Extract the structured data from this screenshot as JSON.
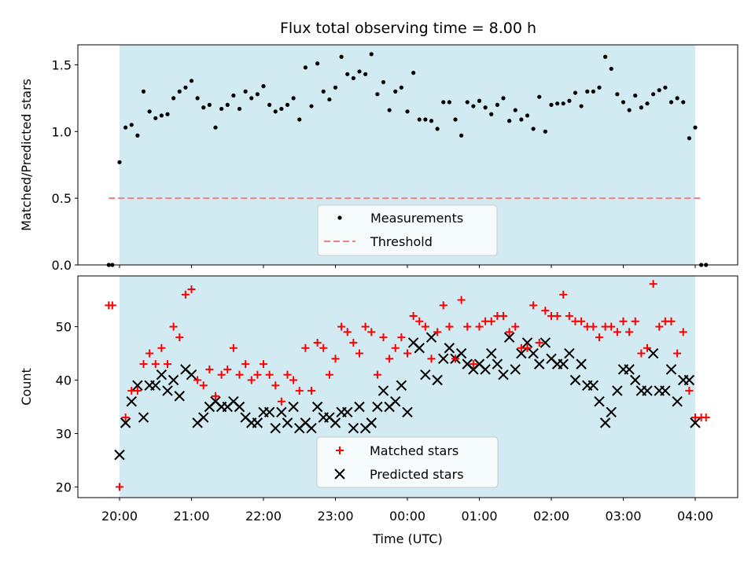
{
  "chart_data": [
    {
      "type": "scatter",
      "title": "Flux total observing time = 8.00 h",
      "ylabel": "Matched/Predicted stars",
      "xlabel": "",
      "ylim": [
        0,
        1.65
      ],
      "yticks": [
        "0.0",
        "0.5",
        "1.0",
        "1.5"
      ],
      "shaded_span": [
        "20:00",
        "04:00"
      ],
      "shade_color": "#add8e6",
      "legend_position": "lower center",
      "threshold": {
        "name": "Threshold",
        "value": 0.5,
        "color": "#f08080"
      },
      "series": [
        {
          "name": "Measurements",
          "color": "#000000",
          "x": [
            "19:51",
            "19:54",
            "20:00",
            "20:05",
            "20:10",
            "20:15",
            "20:20",
            "20:25",
            "20:30",
            "20:35",
            "20:40",
            "20:45",
            "20:50",
            "20:55",
            "21:00",
            "21:05",
            "21:10",
            "21:15",
            "21:20",
            "21:25",
            "21:30",
            "21:35",
            "21:40",
            "21:45",
            "21:50",
            "21:55",
            "22:00",
            "22:05",
            "22:10",
            "22:15",
            "22:20",
            "22:25",
            "22:30",
            "22:35",
            "22:40",
            "22:45",
            "22:50",
            "22:55",
            "23:00",
            "23:05",
            "23:10",
            "23:15",
            "23:20",
            "23:25",
            "23:30",
            "23:35",
            "23:40",
            "23:45",
            "23:50",
            "23:55",
            "00:00",
            "00:05",
            "00:10",
            "00:15",
            "00:20",
            "00:25",
            "00:30",
            "00:35",
            "00:40",
            "00:45",
            "00:50",
            "00:55",
            "01:00",
            "01:05",
            "01:10",
            "01:15",
            "01:20",
            "01:25",
            "01:30",
            "01:35",
            "01:40",
            "01:45",
            "01:50",
            "01:55",
            "02:00",
            "02:05",
            "02:10",
            "02:15",
            "02:20",
            "02:25",
            "02:30",
            "02:35",
            "02:40",
            "02:45",
            "02:50",
            "02:55",
            "03:00",
            "03:05",
            "03:10",
            "03:15",
            "03:20",
            "03:25",
            "03:30",
            "03:35",
            "03:40",
            "03:45",
            "03:50",
            "03:55",
            "04:00",
            "04:05",
            "04:09"
          ],
          "y": [
            0.0,
            0.0,
            0.77,
            1.03,
            1.05,
            0.97,
            1.3,
            1.15,
            1.1,
            1.12,
            1.13,
            1.25,
            1.3,
            1.33,
            1.38,
            1.25,
            1.18,
            1.2,
            1.03,
            1.17,
            1.2,
            1.27,
            1.17,
            1.3,
            1.25,
            1.28,
            1.34,
            1.2,
            1.15,
            1.17,
            1.2,
            1.25,
            1.09,
            1.48,
            1.19,
            1.51,
            1.3,
            1.24,
            1.33,
            1.56,
            1.43,
            1.4,
            1.45,
            1.43,
            1.58,
            1.28,
            1.37,
            1.16,
            1.3,
            1.33,
            1.15,
            1.44,
            1.09,
            1.09,
            1.08,
            1.02,
            1.22,
            1.22,
            1.09,
            0.97,
            1.22,
            1.19,
            1.23,
            1.18,
            1.13,
            1.2,
            1.25,
            1.08,
            1.16,
            1.09,
            1.12,
            1.02,
            1.26,
            1.0,
            1.2,
            1.21,
            1.21,
            1.23,
            1.29,
            1.19,
            1.3,
            1.3,
            1.33,
            1.56,
            1.47,
            1.28,
            1.22,
            1.16,
            1.27,
            1.18,
            1.21,
            1.28,
            1.31,
            1.33,
            1.22,
            1.25,
            1.22,
            0.95,
            1.03,
            0.0,
            0.0
          ]
        }
      ]
    },
    {
      "type": "scatter",
      "xlabel": "Time (UTC)",
      "ylabel": "Count",
      "ylim": [
        18,
        59.5
      ],
      "yticks": [
        "20",
        "30",
        "40",
        "50"
      ],
      "xticks": [
        "20:00",
        "21:00",
        "22:00",
        "23:00",
        "00:00",
        "01:00",
        "02:00",
        "03:00",
        "04:00"
      ],
      "shaded_span": [
        "20:00",
        "04:00"
      ],
      "shade_color": "#add8e6",
      "legend_position": "lower center",
      "series": [
        {
          "name": "Matched stars",
          "marker": "+",
          "color": "#ff0000",
          "x": [
            "19:51",
            "19:54",
            "20:00",
            "20:05",
            "20:10",
            "20:15",
            "20:20",
            "20:25",
            "20:30",
            "20:35",
            "20:40",
            "20:45",
            "20:50",
            "20:55",
            "21:00",
            "21:05",
            "21:10",
            "21:15",
            "21:20",
            "21:25",
            "21:30",
            "21:35",
            "21:40",
            "21:45",
            "21:50",
            "21:55",
            "22:00",
            "22:05",
            "22:10",
            "22:15",
            "22:20",
            "22:25",
            "22:30",
            "22:35",
            "22:40",
            "22:45",
            "22:50",
            "22:55",
            "23:00",
            "23:05",
            "23:10",
            "23:15",
            "23:20",
            "23:25",
            "23:30",
            "23:35",
            "23:40",
            "23:45",
            "23:50",
            "23:55",
            "00:00",
            "00:05",
            "00:10",
            "00:15",
            "00:20",
            "00:25",
            "00:30",
            "00:35",
            "00:40",
            "00:45",
            "00:50",
            "00:55",
            "01:00",
            "01:05",
            "01:10",
            "01:15",
            "01:20",
            "01:25",
            "01:30",
            "01:35",
            "01:40",
            "01:45",
            "01:50",
            "01:55",
            "02:00",
            "02:05",
            "02:10",
            "02:15",
            "02:20",
            "02:25",
            "02:30",
            "02:35",
            "02:40",
            "02:45",
            "02:50",
            "02:55",
            "03:00",
            "03:05",
            "03:10",
            "03:15",
            "03:20",
            "03:25",
            "03:30",
            "03:35",
            "03:40",
            "03:45",
            "03:50",
            "03:55",
            "04:00",
            "04:05",
            "04:09"
          ],
          "y": [
            54,
            54,
            20,
            33,
            38,
            38,
            43,
            45,
            43,
            46,
            43,
            50,
            48,
            56,
            57,
            40,
            39,
            42,
            37,
            41,
            42,
            46,
            41,
            43,
            40,
            41,
            43,
            41,
            39,
            36,
            41,
            40,
            38,
            46,
            38,
            47,
            46,
            41,
            44,
            50,
            49,
            47,
            45,
            50,
            49,
            41,
            48,
            44,
            46,
            48,
            45,
            52,
            51,
            50,
            44,
            49,
            54,
            50,
            44,
            55,
            50,
            43,
            50,
            51,
            51,
            52,
            52,
            49,
            50,
            46,
            46,
            54,
            47,
            53,
            52,
            52,
            56,
            52,
            51,
            51,
            50,
            50,
            48,
            50,
            50,
            49,
            51,
            49,
            51,
            45,
            46,
            58,
            50,
            51,
            51,
            45,
            49,
            38,
            33,
            33,
            33
          ]
        },
        {
          "name": "Predicted stars",
          "marker": "x",
          "color": "#000000",
          "x": [
            "20:00",
            "20:05",
            "20:10",
            "20:15",
            "20:20",
            "20:25",
            "20:30",
            "20:35",
            "20:40",
            "20:45",
            "20:50",
            "20:55",
            "21:00",
            "21:05",
            "21:10",
            "21:15",
            "21:20",
            "21:25",
            "21:30",
            "21:35",
            "21:40",
            "21:45",
            "21:50",
            "21:55",
            "22:00",
            "22:05",
            "22:10",
            "22:15",
            "22:20",
            "22:25",
            "22:30",
            "22:35",
            "22:40",
            "22:45",
            "22:50",
            "22:55",
            "23:00",
            "23:05",
            "23:10",
            "23:15",
            "23:20",
            "23:25",
            "23:30",
            "23:35",
            "23:40",
            "23:45",
            "23:50",
            "23:55",
            "00:00",
            "00:05",
            "00:10",
            "00:15",
            "00:20",
            "00:25",
            "00:30",
            "00:35",
            "00:40",
            "00:45",
            "00:50",
            "00:55",
            "01:00",
            "01:05",
            "01:10",
            "01:15",
            "01:20",
            "01:25",
            "01:30",
            "01:35",
            "01:40",
            "01:45",
            "01:50",
            "01:55",
            "02:00",
            "02:05",
            "02:10",
            "02:15",
            "02:20",
            "02:25",
            "02:30",
            "02:35",
            "02:40",
            "02:45",
            "02:50",
            "02:55",
            "03:00",
            "03:05",
            "03:10",
            "03:15",
            "03:20",
            "03:25",
            "03:30",
            "03:35",
            "03:40",
            "03:45",
            "03:50",
            "03:55",
            "04:00"
          ],
          "y": [
            26,
            32,
            36,
            39,
            33,
            39,
            39,
            41,
            38,
            40,
            37,
            42,
            41,
            32,
            33,
            35,
            36,
            35,
            35,
            36,
            35,
            33,
            32,
            32,
            34,
            34,
            31,
            34,
            32,
            35,
            31,
            32,
            31,
            35,
            33,
            33,
            32,
            34,
            34,
            31,
            35,
            31,
            32,
            35,
            38,
            35,
            36,
            39,
            34,
            47,
            46,
            41,
            48,
            40,
            44,
            46,
            44,
            45,
            43,
            42,
            43,
            42,
            45,
            43,
            41,
            48,
            42,
            45,
            47,
            45,
            43,
            47,
            44,
            43,
            43,
            45,
            40,
            43,
            39,
            39,
            36,
            32,
            34,
            38,
            42,
            42,
            40,
            38,
            38,
            45,
            38,
            38,
            42,
            36,
            40,
            40,
            32
          ]
        }
      ]
    }
  ]
}
